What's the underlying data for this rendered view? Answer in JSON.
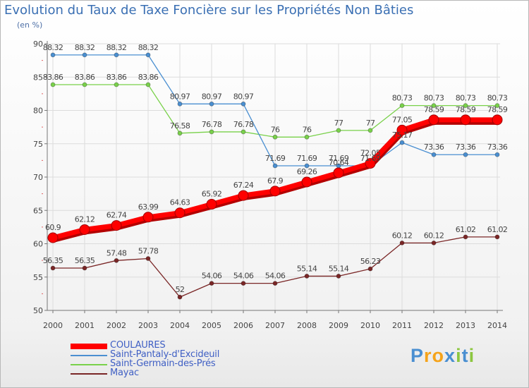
{
  "chart_data": {
    "type": "line",
    "title": "Evolution du Taux de Taxe Foncière sur les Propriétés Non Bâties",
    "subtitle": "(en %)",
    "xlabel": "",
    "ylabel": "",
    "x": [
      "2000",
      "2001",
      "2002",
      "2003",
      "2004",
      "2005",
      "2006",
      "2007",
      "2008",
      "2009",
      "2010",
      "2011",
      "2012",
      "2013",
      "2014"
    ],
    "ylim": [
      50,
      90
    ],
    "yticks": [
      "50",
      "55",
      "60",
      "65",
      "70",
      "75",
      "80",
      "85",
      "90"
    ],
    "grid": true,
    "legend_position": "bottom-left",
    "series": [
      {
        "name": "COULAURES",
        "color": "#ff0000",
        "values": [
          60.9,
          62.12,
          62.74,
          63.99,
          64.63,
          65.92,
          67.24,
          67.9,
          69.26,
          70.64,
          72.05,
          77.05,
          78.59,
          78.59,
          78.59
        ],
        "labels": [
          "60.9",
          "62.12",
          "62.74",
          "63.99",
          "64.63",
          "65.92",
          "67.24",
          "67.9",
          "69.26",
          "70.64",
          "72.05",
          "77.05",
          "78.59",
          "78.59",
          "78.59"
        ]
      },
      {
        "name": "Saint-Pantaly-d'Excideuil",
        "color": "#4a8fd1",
        "values": [
          88.32,
          88.32,
          88.32,
          88.32,
          80.97,
          80.97,
          80.97,
          71.69,
          71.69,
          71.69,
          71.69,
          75.17,
          73.36,
          73.36,
          73.36
        ],
        "labels": [
          "88.32",
          "88.32",
          "88.32",
          "88.32",
          "80.97",
          "80.97",
          "80.97",
          "71.69",
          "71.69",
          "71.69",
          "71.69",
          "75.17",
          "73.36",
          "73.36",
          "73.36"
        ]
      },
      {
        "name": "Saint-Germain-des-Prés",
        "color": "#79d14a",
        "values": [
          83.86,
          83.86,
          83.86,
          83.86,
          76.58,
          76.78,
          76.78,
          76,
          76,
          77,
          77,
          80.73,
          80.73,
          80.73,
          80.73
        ],
        "labels": [
          "83.86",
          "83.86",
          "83.86",
          "83.86",
          "76.58",
          "76.78",
          "76.78",
          "76",
          "76",
          "77",
          "77",
          "80.73",
          "80.73",
          "80.73",
          "80.73"
        ]
      },
      {
        "name": "Mayac",
        "color": "#7a2626",
        "values": [
          56.35,
          56.35,
          57.48,
          57.78,
          52,
          54.06,
          54.06,
          54.06,
          55.14,
          55.14,
          56.23,
          60.12,
          60.12,
          61.02,
          61.02
        ],
        "labels": [
          "56.35",
          "56.35",
          "57.48",
          "57.78",
          "52",
          "54.06",
          "54.06",
          "54.06",
          "55.14",
          "55.14",
          "56.23",
          "60.12",
          "60.12",
          "61.02",
          "61.02"
        ]
      }
    ]
  },
  "brand": {
    "letters": [
      "P",
      "r",
      "o",
      "x",
      "i",
      "t",
      "i"
    ],
    "colors": [
      "#4a8fd1",
      "#f5a31a",
      "#f5a31a",
      "#4a8fd1",
      "#8cc63f",
      "#4a8fd1",
      "#8cc63f"
    ]
  }
}
